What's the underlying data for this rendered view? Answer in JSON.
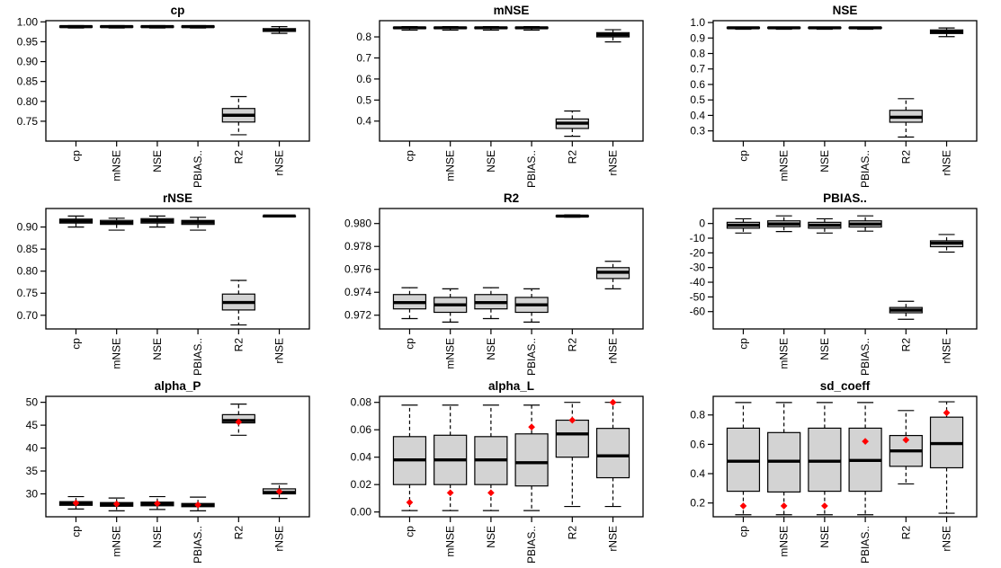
{
  "page": {
    "background": "#ffffff"
  },
  "palette": {
    "box_fill": "#d3d3d3",
    "stroke": "#000000",
    "mean_point": "#ff0000"
  },
  "chart_data": [
    {
      "type": "boxplot",
      "title": "cp",
      "categories": [
        "cp",
        "mNSE",
        "NSE",
        "PBIAS..",
        "R2",
        "rNSE"
      ],
      "ylim": [
        0.7,
        1.003
      ],
      "ytick_values": [
        0.75,
        0.8,
        0.85,
        0.9,
        0.95,
        1.0
      ],
      "ytick_labels": [
        "0.75",
        "0.80",
        "0.85",
        "0.90",
        "0.95",
        "1.00"
      ],
      "boxes": [
        {
          "category": "cp",
          "whisker_low": 0.9845,
          "q1": 0.9865,
          "median": 0.988,
          "q3": 0.9895,
          "whisker_high": 0.9905
        },
        {
          "category": "mNSE",
          "whisker_low": 0.9845,
          "q1": 0.9865,
          "median": 0.988,
          "q3": 0.9895,
          "whisker_high": 0.9905
        },
        {
          "category": "NSE",
          "whisker_low": 0.9845,
          "q1": 0.9865,
          "median": 0.988,
          "q3": 0.9895,
          "whisker_high": 0.9905
        },
        {
          "category": "PBIAS..",
          "whisker_low": 0.9845,
          "q1": 0.9865,
          "median": 0.988,
          "q3": 0.9895,
          "whisker_high": 0.9905
        },
        {
          "category": "R2",
          "whisker_low": 0.716,
          "q1": 0.748,
          "median": 0.765,
          "q3": 0.782,
          "whisker_high": 0.812
        },
        {
          "category": "rNSE",
          "whisker_low": 0.971,
          "q1": 0.976,
          "median": 0.98,
          "q3": 0.983,
          "whisker_high": 0.988
        }
      ]
    },
    {
      "type": "boxplot",
      "title": "mNSE",
      "categories": [
        "cp",
        "mNSE",
        "NSE",
        "PBIAS..",
        "R2",
        "rNSE"
      ],
      "ylim": [
        0.305,
        0.877
      ],
      "ytick_values": [
        0.4,
        0.5,
        0.6,
        0.7,
        0.8
      ],
      "ytick_labels": [
        "0.4",
        "0.5",
        "0.6",
        "0.7",
        "0.8"
      ],
      "boxes": [
        {
          "category": "cp",
          "whisker_low": 0.832,
          "q1": 0.84,
          "median": 0.843,
          "q3": 0.846,
          "whisker_high": 0.849
        },
        {
          "category": "mNSE",
          "whisker_low": 0.832,
          "q1": 0.84,
          "median": 0.843,
          "q3": 0.846,
          "whisker_high": 0.849
        },
        {
          "category": "NSE",
          "whisker_low": 0.832,
          "q1": 0.84,
          "median": 0.843,
          "q3": 0.846,
          "whisker_high": 0.849
        },
        {
          "category": "PBIAS..",
          "whisker_low": 0.832,
          "q1": 0.84,
          "median": 0.843,
          "q3": 0.846,
          "whisker_high": 0.849
        },
        {
          "category": "R2",
          "whisker_low": 0.328,
          "q1": 0.365,
          "median": 0.39,
          "q3": 0.41,
          "whisker_high": 0.448
        },
        {
          "category": "rNSE",
          "whisker_low": 0.776,
          "q1": 0.8,
          "median": 0.81,
          "q3": 0.82,
          "whisker_high": 0.834
        }
      ]
    },
    {
      "type": "boxplot",
      "title": "NSE",
      "categories": [
        "cp",
        "mNSE",
        "NSE",
        "PBIAS..",
        "R2",
        "rNSE"
      ],
      "ylim": [
        0.234,
        1.012
      ],
      "ytick_values": [
        0.3,
        0.4,
        0.5,
        0.6,
        0.7,
        0.8,
        0.9,
        1.0
      ],
      "ytick_labels": [
        "0.3",
        "0.4",
        "0.5",
        "0.6",
        "0.7",
        "0.8",
        "0.9",
        "1.0"
      ],
      "boxes": [
        {
          "category": "cp",
          "whisker_low": 0.957,
          "q1": 0.963,
          "median": 0.966,
          "q3": 0.969,
          "whisker_high": 0.971
        },
        {
          "category": "mNSE",
          "whisker_low": 0.957,
          "q1": 0.963,
          "median": 0.966,
          "q3": 0.969,
          "whisker_high": 0.971
        },
        {
          "category": "NSE",
          "whisker_low": 0.957,
          "q1": 0.963,
          "median": 0.966,
          "q3": 0.969,
          "whisker_high": 0.971
        },
        {
          "category": "PBIAS..",
          "whisker_low": 0.957,
          "q1": 0.963,
          "median": 0.966,
          "q3": 0.969,
          "whisker_high": 0.971
        },
        {
          "category": "R2",
          "whisker_low": 0.26,
          "q1": 0.356,
          "median": 0.388,
          "q3": 0.433,
          "whisker_high": 0.508
        },
        {
          "category": "rNSE",
          "whisker_low": 0.909,
          "q1": 0.929,
          "median": 0.94,
          "q3": 0.952,
          "whisker_high": 0.965
        }
      ]
    },
    {
      "type": "boxplot",
      "title": "rNSE",
      "categories": [
        "cp",
        "mNSE",
        "NSE",
        "PBIAS..",
        "R2",
        "rNSE"
      ],
      "ylim": [
        0.669,
        0.942
      ],
      "ytick_values": [
        0.7,
        0.75,
        0.8,
        0.85,
        0.9
      ],
      "ytick_labels": [
        "0.70",
        "0.75",
        "0.80",
        "0.85",
        "0.90"
      ],
      "boxes": [
        {
          "category": "cp",
          "whisker_low": 0.9,
          "q1": 0.909,
          "median": 0.9135,
          "q3": 0.918,
          "whisker_high": 0.925
        },
        {
          "category": "mNSE",
          "whisker_low": 0.893,
          "q1": 0.906,
          "median": 0.91,
          "q3": 0.915,
          "whisker_high": 0.92
        },
        {
          "category": "NSE",
          "whisker_low": 0.9,
          "q1": 0.909,
          "median": 0.914,
          "q3": 0.919,
          "whisker_high": 0.925
        },
        {
          "category": "PBIAS..",
          "whisker_low": 0.893,
          "q1": 0.906,
          "median": 0.911,
          "q3": 0.915,
          "whisker_high": 0.922
        },
        {
          "category": "R2",
          "whisker_low": 0.678,
          "q1": 0.712,
          "median": 0.729,
          "q3": 0.748,
          "whisker_high": 0.779
        },
        {
          "category": "rNSE",
          "whisker_low": 0.9245,
          "q1": 0.9249,
          "median": 0.9251,
          "q3": 0.9253,
          "whisker_high": 0.9257
        }
      ]
    },
    {
      "type": "boxplot",
      "title": "R2",
      "categories": [
        "cp",
        "mNSE",
        "NSE",
        "PBIAS..",
        "R2",
        "rNSE"
      ],
      "ylim": [
        0.9708,
        0.98131
      ],
      "ytick_values": [
        0.972,
        0.974,
        0.976,
        0.978,
        0.98
      ],
      "ytick_labels": [
        "0.972",
        "0.974",
        "0.976",
        "0.978",
        "0.980"
      ],
      "boxes": [
        {
          "category": "cp",
          "whisker_low": 0.9717,
          "q1": 0.97255,
          "median": 0.9731,
          "q3": 0.9738,
          "whisker_high": 0.9744
        },
        {
          "category": "mNSE",
          "whisker_low": 0.9714,
          "q1": 0.97225,
          "median": 0.9729,
          "q3": 0.97355,
          "whisker_high": 0.9743
        },
        {
          "category": "NSE",
          "whisker_low": 0.9717,
          "q1": 0.97255,
          "median": 0.9731,
          "q3": 0.9738,
          "whisker_high": 0.9744
        },
        {
          "category": "PBIAS..",
          "whisker_low": 0.9714,
          "q1": 0.97225,
          "median": 0.9729,
          "q3": 0.97355,
          "whisker_high": 0.9743
        },
        {
          "category": "R2",
          "whisker_low": 0.98055,
          "q1": 0.98062,
          "median": 0.98065,
          "q3": 0.98068,
          "whisker_high": 0.98075
        },
        {
          "category": "rNSE",
          "whisker_low": 0.9743,
          "q1": 0.9752,
          "median": 0.97575,
          "q3": 0.97615,
          "whisker_high": 0.9767
        }
      ]
    },
    {
      "type": "boxplot",
      "title": "PBIAS..",
      "categories": [
        "cp",
        "mNSE",
        "NSE",
        "PBIAS..",
        "R2",
        "rNSE"
      ],
      "ylim": [
        -71.8,
        10.2
      ],
      "ytick_values": [
        0,
        -10,
        -20,
        -30,
        -40,
        -50,
        -60
      ],
      "ytick_labels": [
        "0",
        "-10",
        "-20",
        "-30",
        "-40",
        "-50",
        "-60"
      ],
      "boxes": [
        {
          "category": "cp",
          "whisker_low": -6.5,
          "q1": -3.2,
          "median": -1.2,
          "q3": 0.8,
          "whisker_high": 3.2
        },
        {
          "category": "mNSE",
          "whisker_low": -5.5,
          "q1": -2.2,
          "median": -0.3,
          "q3": 1.8,
          "whisker_high": 5.2
        },
        {
          "category": "NSE",
          "whisker_low": -6.5,
          "q1": -3.2,
          "median": -1.2,
          "q3": 0.8,
          "whisker_high": 3.2
        },
        {
          "category": "PBIAS..",
          "whisker_low": -5.2,
          "q1": -2.4,
          "median": -0.4,
          "q3": 1.8,
          "whisker_high": 5.2
        },
        {
          "category": "R2",
          "whisker_low": -65.2,
          "q1": -60.8,
          "median": -59.0,
          "q3": -57.2,
          "whisker_high": -53.0
        },
        {
          "category": "rNSE",
          "whisker_low": -19.5,
          "q1": -15.8,
          "median": -13.4,
          "q3": -11.8,
          "whisker_high": -7.5
        }
      ]
    },
    {
      "type": "boxplot",
      "title": "alpha_P",
      "categories": [
        "cp",
        "mNSE",
        "NSE",
        "PBIAS..",
        "R2",
        "rNSE"
      ],
      "ylim": [
        25.0,
        51.3
      ],
      "ytick_values": [
        30,
        35,
        40,
        45,
        50
      ],
      "ytick_labels": [
        "30",
        "35",
        "40",
        "45",
        "50"
      ],
      "boxes": [
        {
          "category": "cp",
          "whisker_low": 26.7,
          "q1": 27.5,
          "median": 27.9,
          "q3": 28.3,
          "whisker_high": 29.4,
          "mean": 28.0
        },
        {
          "category": "mNSE",
          "whisker_low": 26.3,
          "q1": 27.3,
          "median": 27.7,
          "q3": 28.1,
          "whisker_high": 29.1,
          "mean": 27.8
        },
        {
          "category": "NSE",
          "whisker_low": 26.6,
          "q1": 27.4,
          "median": 27.8,
          "q3": 28.2,
          "whisker_high": 29.4,
          "mean": 27.9
        },
        {
          "category": "PBIAS..",
          "whisker_low": 26.3,
          "q1": 27.2,
          "median": 27.6,
          "q3": 27.9,
          "whisker_high": 29.3,
          "mean": 27.6
        },
        {
          "category": "R2",
          "whisker_low": 42.8,
          "q1": 45.5,
          "median": 46.0,
          "q3": 47.3,
          "whisker_high": 49.6,
          "mean": 45.7
        },
        {
          "category": "rNSE",
          "whisker_low": 29.0,
          "q1": 30.0,
          "median": 30.3,
          "q3": 31.1,
          "whisker_high": 32.2,
          "mean": 30.5
        }
      ]
    },
    {
      "type": "boxplot",
      "title": "alpha_L",
      "categories": [
        "cp",
        "mNSE",
        "NSE",
        "PBIAS..",
        "R2",
        "rNSE"
      ],
      "ylim": [
        -0.0035,
        0.0844
      ],
      "ytick_values": [
        0.0,
        0.02,
        0.04,
        0.06,
        0.08
      ],
      "ytick_labels": [
        "0.00",
        "0.02",
        "0.04",
        "0.06",
        "0.08"
      ],
      "boxes": [
        {
          "category": "cp",
          "whisker_low": 0.001,
          "q1": 0.02,
          "median": 0.038,
          "q3": 0.055,
          "whisker_high": 0.078,
          "mean": 0.007
        },
        {
          "category": "mNSE",
          "whisker_low": 0.001,
          "q1": 0.02,
          "median": 0.038,
          "q3": 0.056,
          "whisker_high": 0.078,
          "mean": 0.014
        },
        {
          "category": "NSE",
          "whisker_low": 0.001,
          "q1": 0.02,
          "median": 0.038,
          "q3": 0.055,
          "whisker_high": 0.078,
          "mean": 0.014
        },
        {
          "category": "PBIAS..",
          "whisker_low": 0.001,
          "q1": 0.019,
          "median": 0.036,
          "q3": 0.057,
          "whisker_high": 0.078,
          "mean": 0.062
        },
        {
          "category": "R2",
          "whisker_low": 0.004,
          "q1": 0.04,
          "median": 0.057,
          "q3": 0.067,
          "whisker_high": 0.08,
          "mean": 0.067
        },
        {
          "category": "rNSE",
          "whisker_low": 0.004,
          "q1": 0.025,
          "median": 0.041,
          "q3": 0.061,
          "whisker_high": 0.08,
          "mean": 0.08
        }
      ]
    },
    {
      "type": "boxplot",
      "title": "sd_coeff",
      "categories": [
        "cp",
        "mNSE",
        "NSE",
        "PBIAS..",
        "R2",
        "rNSE"
      ],
      "ylim": [
        0.106,
        0.927
      ],
      "ytick_values": [
        0.2,
        0.4,
        0.6,
        0.8
      ],
      "ytick_labels": [
        "0.2",
        "0.4",
        "0.6",
        "0.8"
      ],
      "boxes": [
        {
          "category": "cp",
          "whisker_low": 0.12,
          "q1": 0.28,
          "median": 0.485,
          "q3": 0.71,
          "whisker_high": 0.885,
          "mean": 0.18
        },
        {
          "category": "mNSE",
          "whisker_low": 0.12,
          "q1": 0.275,
          "median": 0.485,
          "q3": 0.68,
          "whisker_high": 0.885,
          "mean": 0.18
        },
        {
          "category": "NSE",
          "whisker_low": 0.12,
          "q1": 0.28,
          "median": 0.485,
          "q3": 0.71,
          "whisker_high": 0.885,
          "mean": 0.18
        },
        {
          "category": "PBIAS..",
          "whisker_low": 0.12,
          "q1": 0.28,
          "median": 0.49,
          "q3": 0.71,
          "whisker_high": 0.885,
          "mean": 0.62
        },
        {
          "category": "R2",
          "whisker_low": 0.33,
          "q1": 0.45,
          "median": 0.555,
          "q3": 0.66,
          "whisker_high": 0.83,
          "mean": 0.63
        },
        {
          "category": "rNSE",
          "whisker_low": 0.13,
          "q1": 0.44,
          "median": 0.605,
          "q3": 0.785,
          "whisker_high": 0.89,
          "mean": 0.815
        }
      ]
    }
  ]
}
